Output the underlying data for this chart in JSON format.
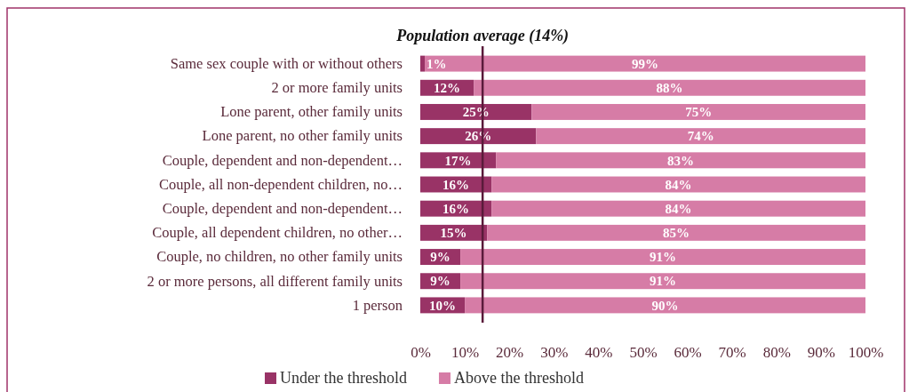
{
  "chart_data": {
    "type": "bar",
    "orientation": "horizontal",
    "stacked": true,
    "categories": [
      "Same sex couple with or without others",
      "2 or more family units",
      "Lone parent, other family units",
      "Lone parent, no other family units",
      "Couple, dependent and non-dependent…",
      "Couple, all non-dependent children, no…",
      "Couple, dependent and non-dependent…",
      "Couple, all dependent children, no other…",
      "Couple, no children, no other family units",
      "2 or more persons, all different family units",
      "1 person"
    ],
    "series": [
      {
        "name": "Under the threshold",
        "color": "#993366",
        "values": [
          1,
          12,
          25,
          26,
          17,
          16,
          16,
          15,
          9,
          9,
          10
        ],
        "value_labels": [
          "1%",
          "12%",
          "25%",
          "26%",
          "17%",
          "16%",
          "16%",
          "15%",
          "9%",
          "9%",
          "10%"
        ]
      },
      {
        "name": "Above the threshold",
        "color": "#d67ca6",
        "values": [
          99,
          88,
          75,
          74,
          83,
          84,
          84,
          85,
          91,
          91,
          90
        ],
        "value_labels": [
          "99%",
          "88%",
          "75%",
          "74%",
          "83%",
          "84%",
          "84%",
          "85%",
          "91%",
          "91%",
          "90%"
        ]
      }
    ],
    "xlim": [
      0,
      100
    ],
    "xticks": [
      {
        "value": 0,
        "label": "0%"
      },
      {
        "value": 10,
        "label": "10%"
      },
      {
        "value": 20,
        "label": "20%"
      },
      {
        "value": 30,
        "label": "30%"
      },
      {
        "value": 40,
        "label": "40%"
      },
      {
        "value": 50,
        "label": "50%"
      },
      {
        "value": 60,
        "label": "60%"
      },
      {
        "value": 70,
        "label": "70%"
      },
      {
        "value": 80,
        "label": "80%"
      },
      {
        "value": 90,
        "label": "90%"
      },
      {
        "value": 100,
        "label": "100%"
      }
    ],
    "ref_lines": [
      {
        "axis": "x",
        "value": 14,
        "label": "Population average (14%)",
        "color": "#5a1a3a"
      }
    ],
    "grid": false,
    "legend": "bottom"
  }
}
